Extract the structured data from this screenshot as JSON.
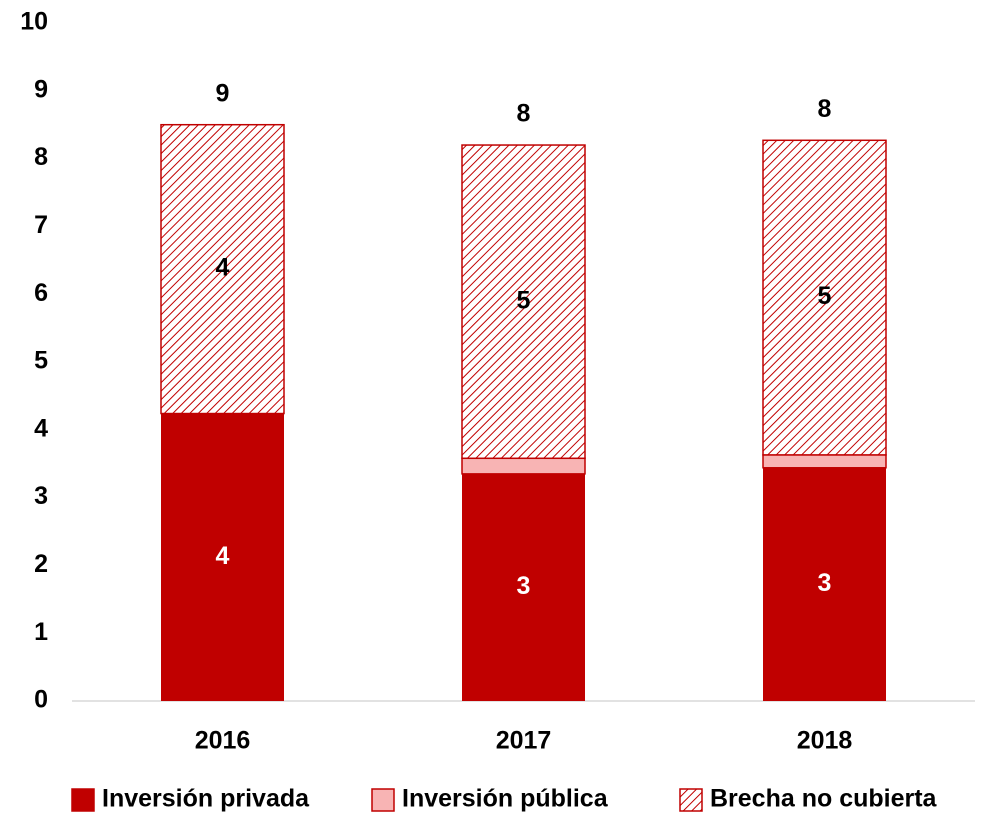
{
  "chart_data": {
    "type": "stacked_bar",
    "categories": [
      "2016",
      "2017",
      "2018"
    ],
    "series": [
      {
        "name": "Inversión privada",
        "color": "#c00000",
        "values": [
          4.24,
          3.35,
          3.44
        ],
        "value_labels": [
          "4",
          "3",
          "3"
        ]
      },
      {
        "name": "Inversión pública",
        "color": "#f8b4b4",
        "values": [
          0,
          0.23,
          0.19
        ]
      },
      {
        "name": "Brecha no cubierta",
        "color": "#c00000",
        "pattern": "hatch",
        "values": [
          4.26,
          4.62,
          4.64
        ],
        "value_labels": [
          "4",
          "5",
          "5"
        ]
      }
    ],
    "total_labels": [
      "9",
      "8",
      "8"
    ],
    "ylim": [
      0,
      10
    ],
    "yticks": [
      0,
      1,
      2,
      3,
      4,
      5,
      6,
      7,
      8,
      9,
      10
    ],
    "grid": false,
    "legend": "bottom"
  }
}
